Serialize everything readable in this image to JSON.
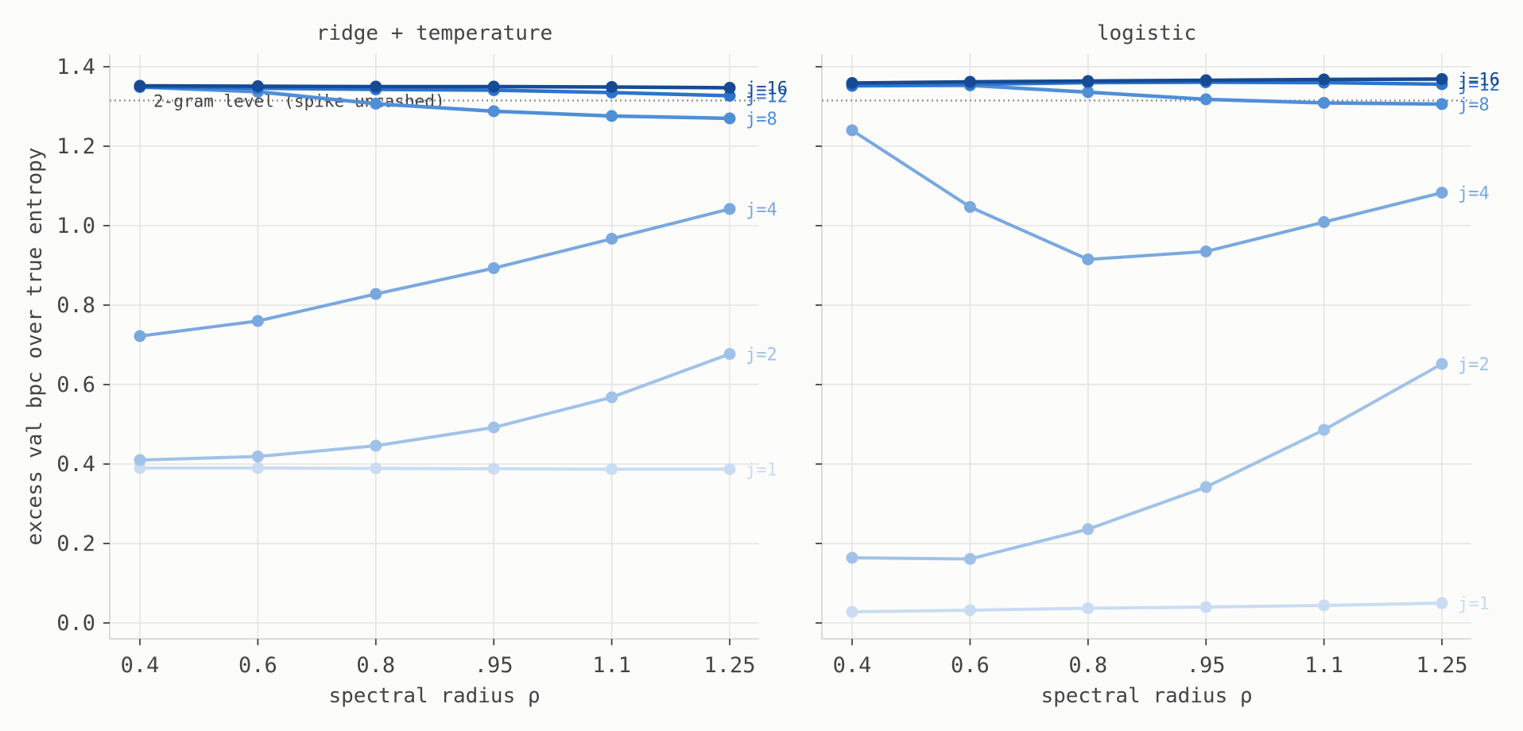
{
  "chart_data": [
    {
      "type": "line",
      "title": "ridge + temperature",
      "xlabel": "spectral radius ρ",
      "ylabel": "excess val bpc over true entropy",
      "x_tick_labels": [
        "0.4",
        "0.6",
        "0.8",
        ".95",
        "1.1",
        "1.25"
      ],
      "y_tick_labels": [
        "0.0",
        "0.2",
        "0.4",
        "0.6",
        "0.8",
        "1.0",
        "1.2",
        "1.4"
      ],
      "ylim": [
        -0.04,
        1.43
      ],
      "grid": true,
      "reference_line": {
        "y": 1.315,
        "label": "2-gram level (spike uncashed)"
      },
      "series": [
        {
          "name": "j=1",
          "color": "#c9dcf3",
          "values": [
            0.39,
            0.39,
            0.389,
            0.388,
            0.387,
            0.387
          ]
        },
        {
          "name": "j=2",
          "color": "#a1c2e8",
          "values": [
            0.41,
            0.419,
            0.446,
            0.492,
            0.568,
            0.677
          ]
        },
        {
          "name": "j=4",
          "color": "#79a8df",
          "values": [
            0.722,
            0.76,
            0.828,
            0.893,
            0.967,
            1.042
          ]
        },
        {
          "name": "j=8",
          "color": "#4f8fd8",
          "values": [
            1.349,
            1.337,
            1.307,
            1.288,
            1.276,
            1.27
          ]
        },
        {
          "name": "j=12",
          "color": "#2c73cc",
          "values": [
            1.349,
            1.346,
            1.343,
            1.341,
            1.335,
            1.327
          ]
        },
        {
          "name": "j=16",
          "color": "#164a94",
          "values": [
            1.352,
            1.351,
            1.35,
            1.35,
            1.349,
            1.347
          ]
        }
      ]
    },
    {
      "type": "line",
      "title": "logistic",
      "xlabel": "spectral radius ρ",
      "ylabel": "",
      "x_tick_labels": [
        "0.4",
        "0.6",
        "0.8",
        ".95",
        "1.1",
        "1.25"
      ],
      "y_tick_labels": [],
      "ylim": [
        -0.04,
        1.43
      ],
      "grid": true,
      "reference_line": {
        "y": 1.315,
        "label": ""
      },
      "series": [
        {
          "name": "j=1",
          "color": "#c9dcf3",
          "values": [
            0.028,
            0.032,
            0.037,
            0.04,
            0.044,
            0.05
          ]
        },
        {
          "name": "j=2",
          "color": "#a1c2e8",
          "values": [
            0.164,
            0.161,
            0.236,
            0.342,
            0.486,
            0.652
          ]
        },
        {
          "name": "j=4",
          "color": "#79a8df",
          "values": [
            1.24,
            1.047,
            0.915,
            0.935,
            1.009,
            1.083
          ]
        },
        {
          "name": "j=8",
          "color": "#4f8fd8",
          "values": [
            1.352,
            1.353,
            1.336,
            1.318,
            1.309,
            1.306
          ]
        },
        {
          "name": "j=12",
          "color": "#2c73cc",
          "values": [
            1.352,
            1.356,
            1.36,
            1.361,
            1.36,
            1.356
          ]
        },
        {
          "name": "j=16",
          "color": "#164a94",
          "values": [
            1.359,
            1.362,
            1.364,
            1.366,
            1.368,
            1.369
          ]
        }
      ]
    }
  ]
}
